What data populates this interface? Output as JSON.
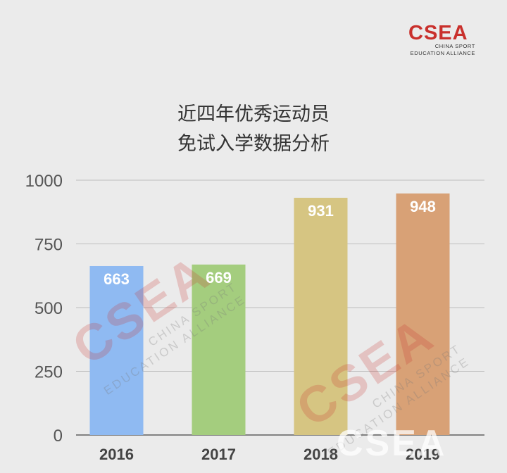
{
  "logo": {
    "mark": "CSEA",
    "line1": "CHINA SPORT",
    "line2": "EDUCATION ALLIANCE"
  },
  "header": {
    "title_line1": "近四年优秀运动员",
    "title_line2": "免试入学数据分析"
  },
  "chart_data": {
    "type": "bar",
    "title": "近四年优秀运动员 免试入学数据分析",
    "categories": [
      "2016",
      "2017",
      "2018",
      "2019"
    ],
    "values": [
      663,
      669,
      931,
      948
    ],
    "bar_colors": [
      "#8fbaf2",
      "#a4cd7e",
      "#d6c582",
      "#d8a176"
    ],
    "ylim": [
      0,
      1000
    ],
    "yticks": [
      "0",
      "250",
      "500",
      "750",
      "1000"
    ],
    "grid": true,
    "data_labels": [
      "663",
      "669",
      "931",
      "948"
    ]
  },
  "colors": {
    "background": "#ebebeb",
    "brand": "#c9302c",
    "gridline": "#bdbdbd",
    "axis": "#555555",
    "label": "#ffffff"
  }
}
